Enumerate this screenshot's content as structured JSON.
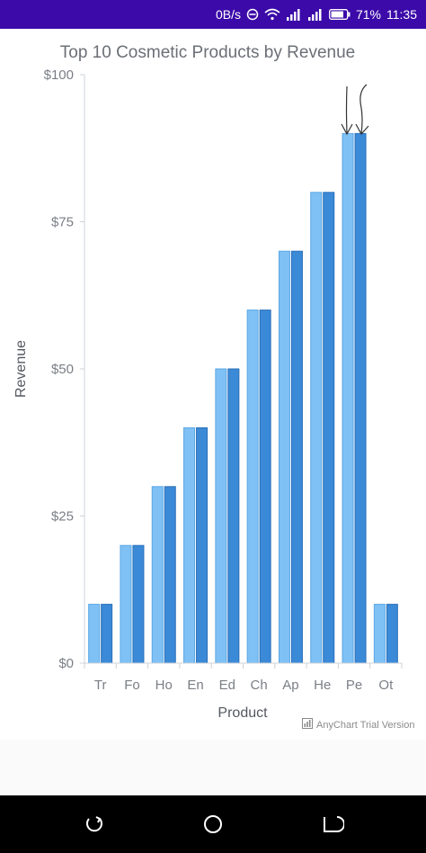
{
  "status_bar": {
    "net_speed": "0B/s",
    "battery": "71%",
    "time": "11:35",
    "icons": [
      "dnd-icon",
      "wifi-icon",
      "signal-icon",
      "signal-icon-2",
      "battery-icon"
    ]
  },
  "chart_data": {
    "type": "bar",
    "title": "Top 10 Cosmetic Products by Revenue",
    "xlabel": "Product",
    "ylabel": "Revenue",
    "ylim": [
      0,
      100
    ],
    "yticks": [
      "$0",
      "$25",
      "$50",
      "$75",
      "$100"
    ],
    "yticks_values": [
      0,
      25,
      50,
      75,
      100
    ],
    "categories": [
      "Tr",
      "Fo",
      "Ho",
      "En",
      "Ed",
      "Ch",
      "Ap",
      "He",
      "Pe",
      "Ot"
    ],
    "series": [
      {
        "values": [
          10,
          20,
          30,
          40,
          50,
          60,
          70,
          80,
          90,
          10
        ],
        "color": "#7fc1f4"
      },
      {
        "values": [
          10,
          20,
          30,
          40,
          50,
          60,
          70,
          80,
          90,
          10
        ],
        "color": "#3b8ad8"
      }
    ],
    "grid": false,
    "annotations": "two hand-drawn arrows pointing to the Pe bars"
  },
  "watermark": {
    "text": "AnyChart Trial Version"
  },
  "nav": {
    "icons": [
      "recent-apps-icon",
      "home-icon",
      "back-icon"
    ]
  }
}
